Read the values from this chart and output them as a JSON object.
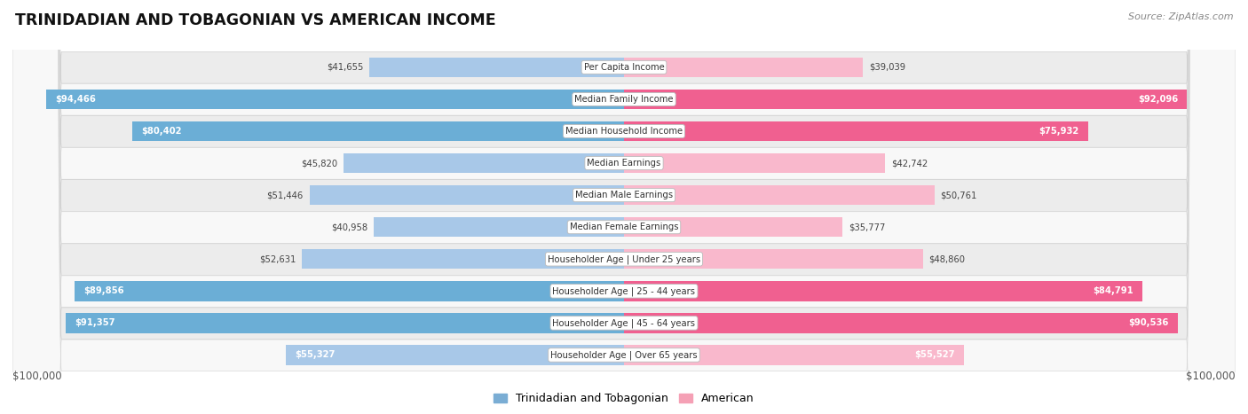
{
  "title": "TRINIDADIAN AND TOBAGONIAN VS AMERICAN INCOME",
  "source": "Source: ZipAtlas.com",
  "categories": [
    "Per Capita Income",
    "Median Family Income",
    "Median Household Income",
    "Median Earnings",
    "Median Male Earnings",
    "Median Female Earnings",
    "Householder Age | Under 25 years",
    "Householder Age | 25 - 44 years",
    "Householder Age | 45 - 64 years",
    "Householder Age | Over 65 years"
  ],
  "trinidadian_values": [
    41655,
    94466,
    80402,
    45820,
    51446,
    40958,
    52631,
    89856,
    91357,
    55327
  ],
  "american_values": [
    39039,
    92096,
    75932,
    42742,
    50761,
    35777,
    48860,
    84791,
    90536,
    55527
  ],
  "trinidadian_labels": [
    "$41,655",
    "$94,466",
    "$80,402",
    "$45,820",
    "$51,446",
    "$40,958",
    "$52,631",
    "$89,856",
    "$91,357",
    "$55,327"
  ],
  "american_labels": [
    "$39,039",
    "$92,096",
    "$75,932",
    "$42,742",
    "$50,761",
    "$35,777",
    "$48,860",
    "$84,791",
    "$90,536",
    "$55,527"
  ],
  "max_value": 100000,
  "blue_light": "#a8c8e8",
  "blue_dark": "#6baed6",
  "pink_light": "#f9b8cc",
  "pink_dark": "#f06090",
  "bg_gray": "#e8e8e8",
  "bg_white": "#f8f8f8",
  "legend_blue": "#7aadd4",
  "legend_pink": "#f5a0b5",
  "legend_blue_label": "Trinidadian and Tobagonian",
  "legend_pink_label": "American",
  "xlabel_left": "$100,000",
  "xlabel_right": "$100,000",
  "label_threshold": 55000
}
